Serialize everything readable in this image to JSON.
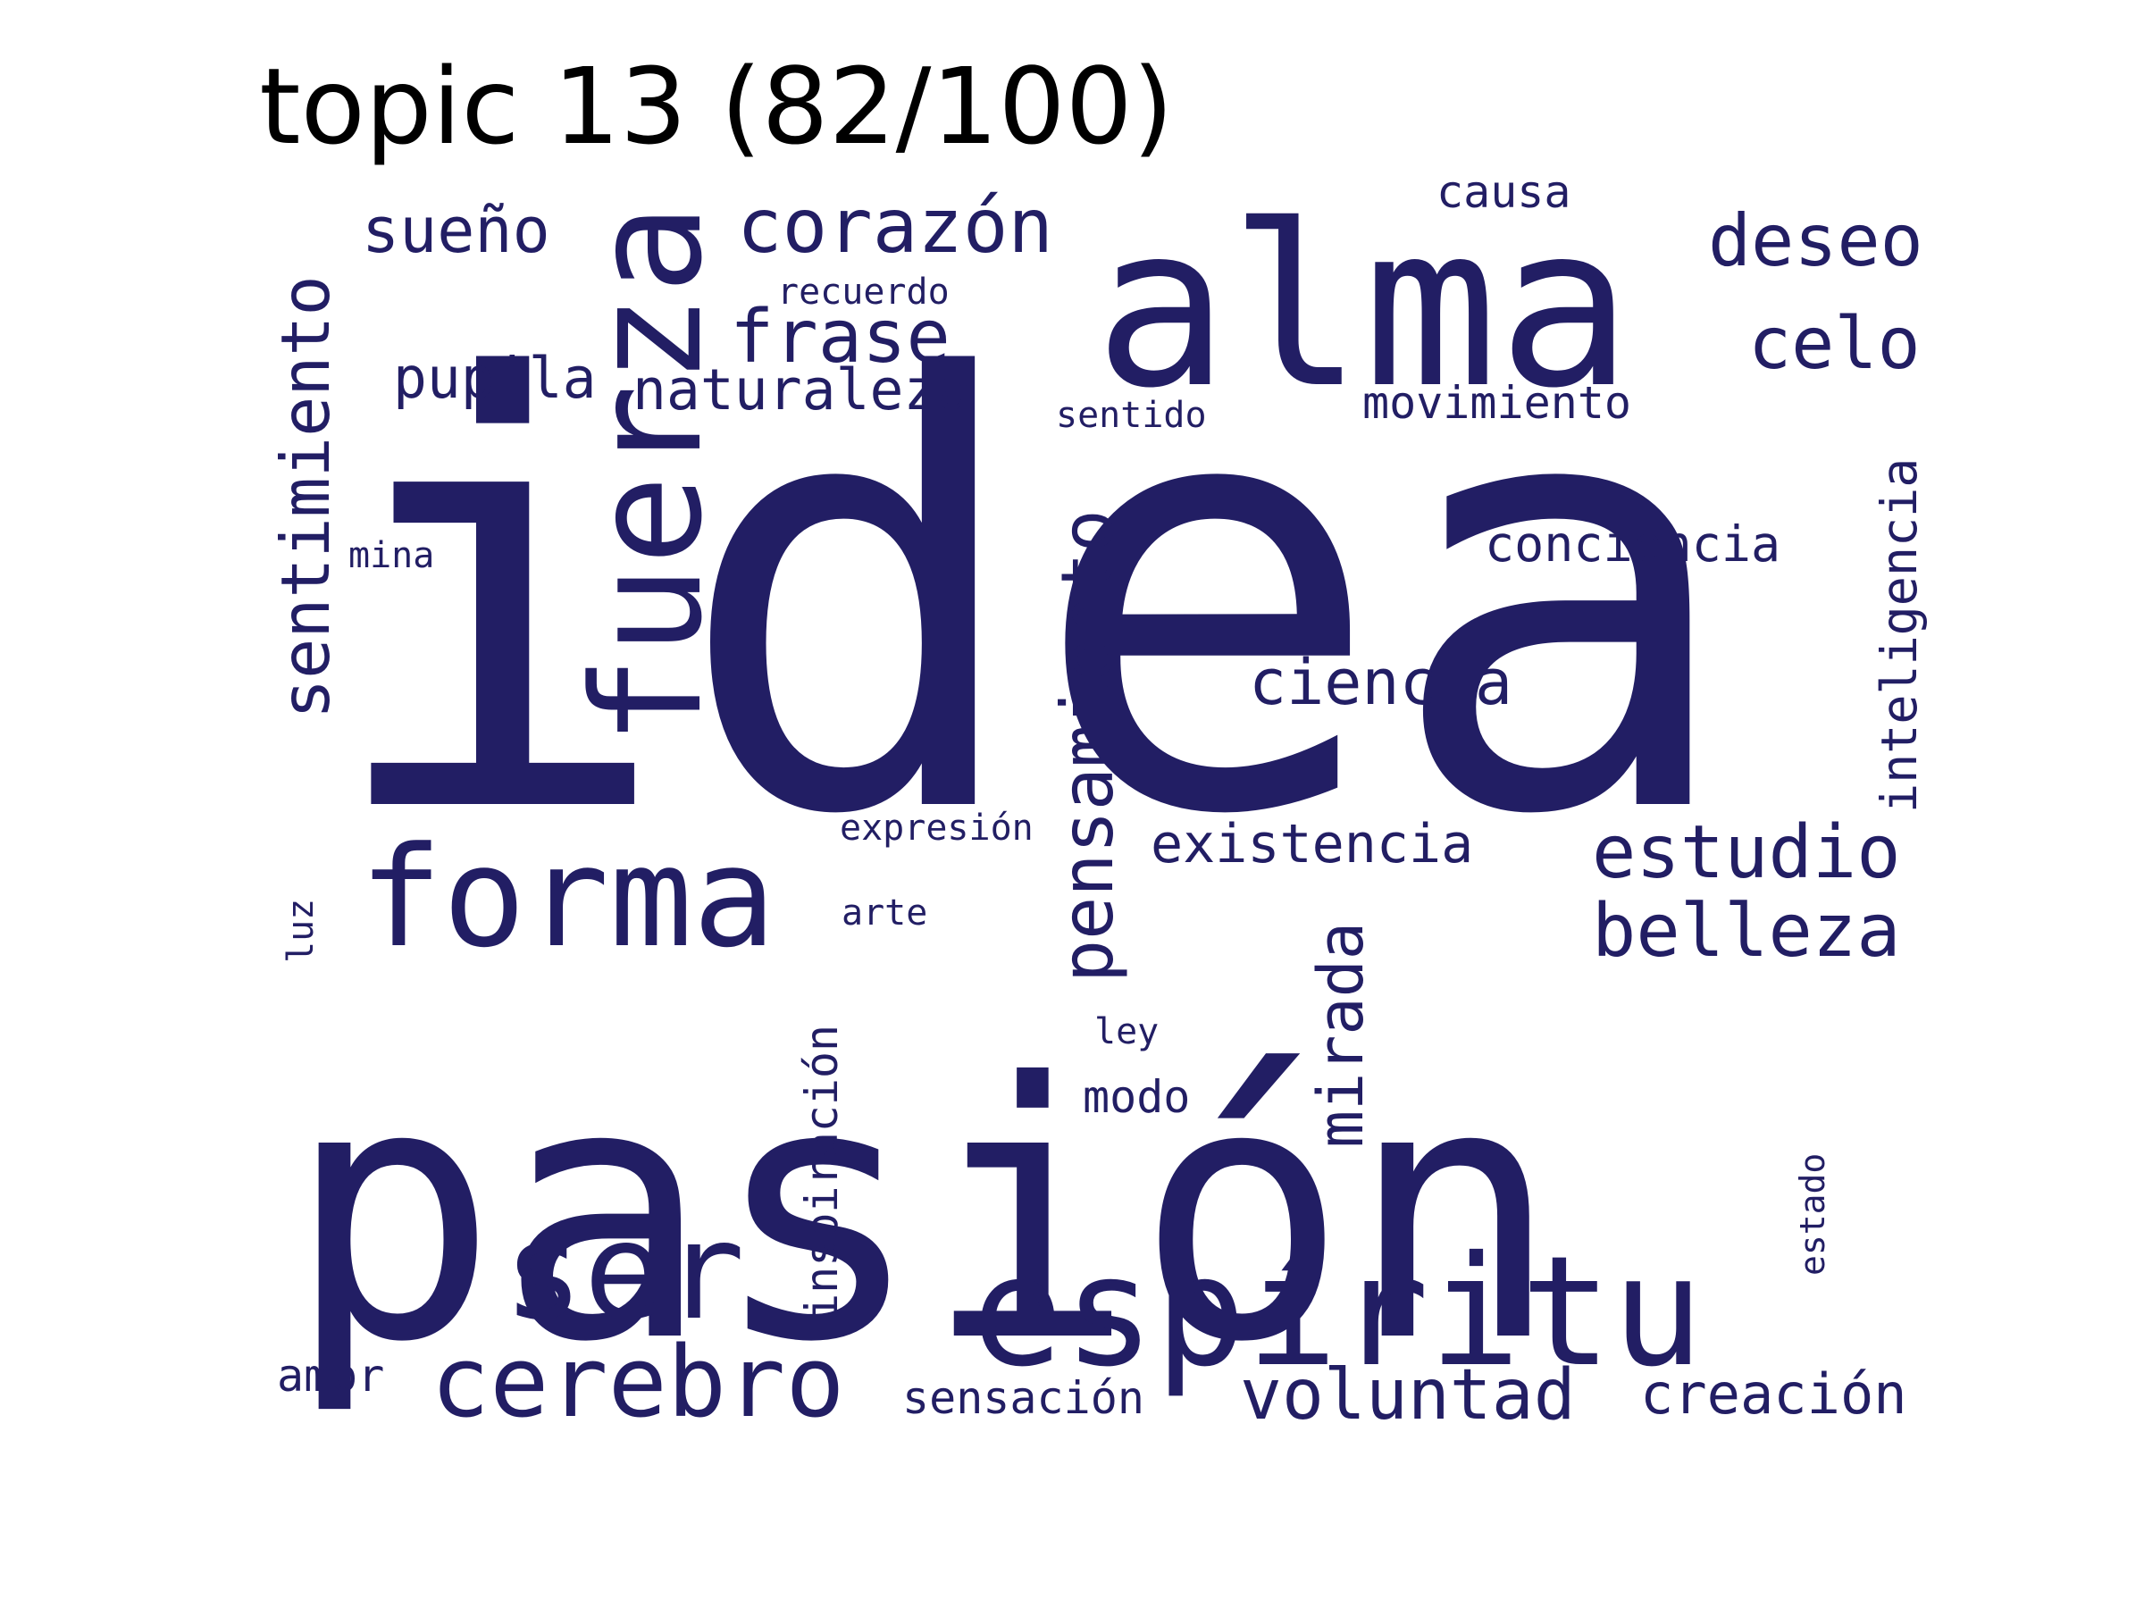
{
  "title": "topic 13 (82/100)",
  "word_color": "#221e64",
  "words": [
    {
      "text": "idea"
    },
    {
      "text": "pasión"
    },
    {
      "text": "alma"
    },
    {
      "text": "fuerza"
    },
    {
      "text": "espíritu"
    },
    {
      "text": "forma"
    },
    {
      "text": "ser"
    },
    {
      "text": "cerebro"
    },
    {
      "text": "pensamiento"
    },
    {
      "text": "sentimiento"
    },
    {
      "text": "corazón"
    },
    {
      "text": "frase"
    },
    {
      "text": "deseo"
    },
    {
      "text": "celo"
    },
    {
      "text": "sueño"
    },
    {
      "text": "estudio"
    },
    {
      "text": "belleza"
    },
    {
      "text": "voluntad"
    },
    {
      "text": "mirada"
    },
    {
      "text": "ciencia"
    },
    {
      "text": "naturaleza"
    },
    {
      "text": "pupila"
    },
    {
      "text": "existencia"
    },
    {
      "text": "creación"
    },
    {
      "text": "conciencia"
    },
    {
      "text": "inteligencia"
    },
    {
      "text": "movimiento"
    },
    {
      "text": "inspiración"
    },
    {
      "text": "sensación"
    },
    {
      "text": "causa"
    },
    {
      "text": "modo"
    },
    {
      "text": "amor"
    },
    {
      "text": "recuerdo"
    },
    {
      "text": "sentido"
    },
    {
      "text": "expresión"
    },
    {
      "text": "arte"
    },
    {
      "text": "mina"
    },
    {
      "text": "ley"
    },
    {
      "text": "luz"
    },
    {
      "text": "estado"
    }
  ]
}
